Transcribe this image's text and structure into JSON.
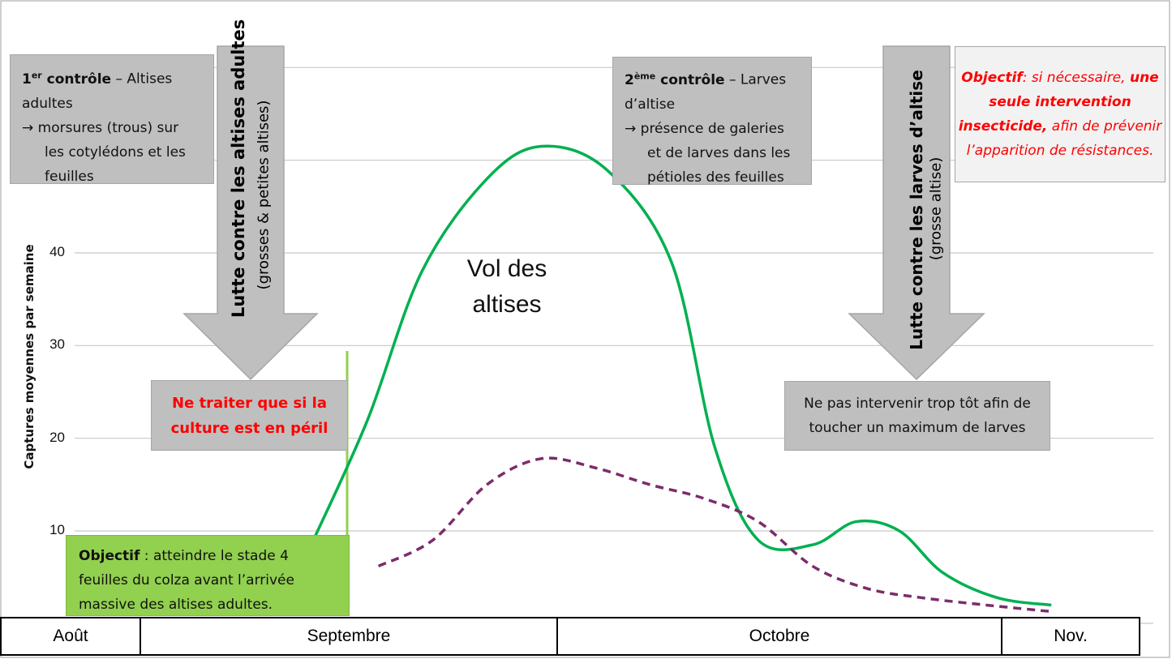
{
  "chart_data": {
    "type": "line",
    "ylabel": "Captures moyennes par semaine",
    "yticks": [
      10,
      20,
      30,
      40
    ],
    "ylim": [
      0,
      55
    ],
    "xlim": [
      0,
      100
    ],
    "categories": [
      "Août",
      "Septembre",
      "Octobre",
      "Nov."
    ],
    "grid": true,
    "series": [
      {
        "style": "solid",
        "color": "#00b050",
        "points": [
          [
            22,
            9
          ],
          [
            27,
            22
          ],
          [
            32,
            38
          ],
          [
            38,
            48
          ],
          [
            43,
            51.5
          ],
          [
            49,
            49
          ],
          [
            55,
            39
          ],
          [
            59,
            19
          ],
          [
            63,
            9
          ],
          [
            68,
            8.5
          ],
          [
            72,
            11
          ],
          [
            76,
            10
          ],
          [
            80,
            5.5
          ],
          [
            85,
            2.8
          ],
          [
            90,
            2
          ]
        ]
      },
      {
        "style": "dashed",
        "color": "#7b2c6a",
        "points": [
          [
            28,
            6.2
          ],
          [
            33,
            9
          ],
          [
            38,
            15
          ],
          [
            43,
            17.8
          ],
          [
            48,
            16.8
          ],
          [
            53,
            15
          ],
          [
            58,
            13.5
          ],
          [
            63,
            11
          ],
          [
            68,
            6.2
          ],
          [
            73,
            3.8
          ],
          [
            78,
            2.8
          ],
          [
            84,
            2
          ],
          [
            90,
            1.3
          ]
        ]
      }
    ],
    "annotation": "Vol des altises",
    "annotation_line2": ""
  },
  "annotations": {
    "vol_line1": "Vol des",
    "vol_line2": "altises",
    "c1_sup": "er",
    "c1_num": "1",
    "c1_bold": " contrôle",
    "c1_rest": " – Altises",
    "c1_line2": "adultes",
    "c1_line3": "→ morsures (trous) sur",
    "c1_line4": "les cotylédons et les",
    "c1_line5": "feuilles",
    "c2_num": "2",
    "c2_sup": "ème",
    "c2_bold": " contrôle",
    "c2_rest": " – Larves",
    "c2_line2": "d’altise",
    "c2_line3": "→ présence de galeries",
    "c2_line4": "et de larves dans les",
    "c2_line5": "pétioles des feuilles",
    "arrow1_main": "Lutte contre les altises adultes",
    "arrow1_sub": "(grosses & petites altises)",
    "arrow2_main": "Lutte contre les larves d’altise",
    "arrow2_sub": "(grosse altise)",
    "warn": "Ne traiter que si la culture est en péril",
    "note2": "Ne pas intervenir trop tôt afin de toucher un maximum de larves",
    "obj1_label": "Objectif",
    "obj1_sep": ":  si nécessaire,",
    "obj1_bold": "une seule intervention insecticide,",
    "obj1_rest": " afin de prévenir l’apparition de résistances.",
    "obj2_label": "Objectif",
    "obj2_text": " : atteindre le stade 4 feuilles du colza avant l’arrivée massive des altises adultes."
  },
  "colors": {
    "green_curve": "#00b050",
    "purple_curve": "#7b2c6a",
    "grey_box": "#bfbfbf",
    "green_box": "#92d050",
    "red_text": "#ff0000"
  }
}
